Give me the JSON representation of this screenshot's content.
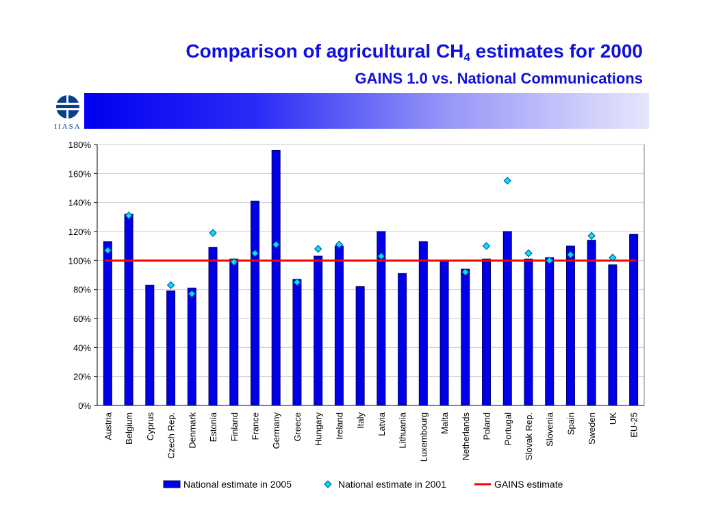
{
  "title": {
    "main_prefix": "Comparison of agricultural CH",
    "main_sub": "4",
    "main_suffix": " estimates for 2000",
    "subtitle": "GAINS 1.0 vs. National Communications"
  },
  "logo": {
    "text": "IIASA"
  },
  "colors": {
    "title": "#1010e0",
    "bar": "#0000e8",
    "diamond": "#00e0ff",
    "line": "#ff0000"
  },
  "chart_data": {
    "type": "bar",
    "categories": [
      "Austria",
      "Belgium",
      "Cyprus",
      "Czech Rep.",
      "Denmark",
      "Estonia",
      "Finland",
      "France",
      "Germany",
      "Greece",
      "Hungary",
      "Ireland",
      "Italy",
      "Latvia",
      "Lithuania",
      "Luxembourg",
      "Malta",
      "Netherlands",
      "Poland",
      "Portugal",
      "Slovak Rep.",
      "Slovenia",
      "Spain",
      "Sweden",
      "UK",
      "EU-25"
    ],
    "series": [
      {
        "name": "National estimate in 2005",
        "kind": "bar",
        "values": [
          113,
          132,
          83,
          79,
          81,
          109,
          101,
          141,
          176,
          87,
          103,
          110,
          82,
          120,
          91,
          113,
          100,
          94,
          101,
          120,
          101,
          102,
          110,
          114,
          97,
          118
        ]
      },
      {
        "name": "National estimate in 2001",
        "kind": "marker",
        "values": [
          107,
          131,
          null,
          83,
          77,
          119,
          99,
          105,
          111,
          85,
          108,
          111,
          null,
          103,
          null,
          null,
          null,
          92,
          110,
          155,
          105,
          100,
          104,
          117,
          102,
          null
        ]
      },
      {
        "name": "GAINS estimate",
        "kind": "line",
        "value": 100
      }
    ],
    "ylim": [
      0,
      180
    ],
    "yticks": [
      0,
      20,
      40,
      60,
      80,
      100,
      120,
      140,
      160,
      180
    ],
    "ytick_labels": [
      "0%",
      "20%",
      "40%",
      "60%",
      "80%",
      "100%",
      "120%",
      "140%",
      "160%",
      "180%"
    ],
    "grid": true,
    "legend_position": "bottom"
  }
}
